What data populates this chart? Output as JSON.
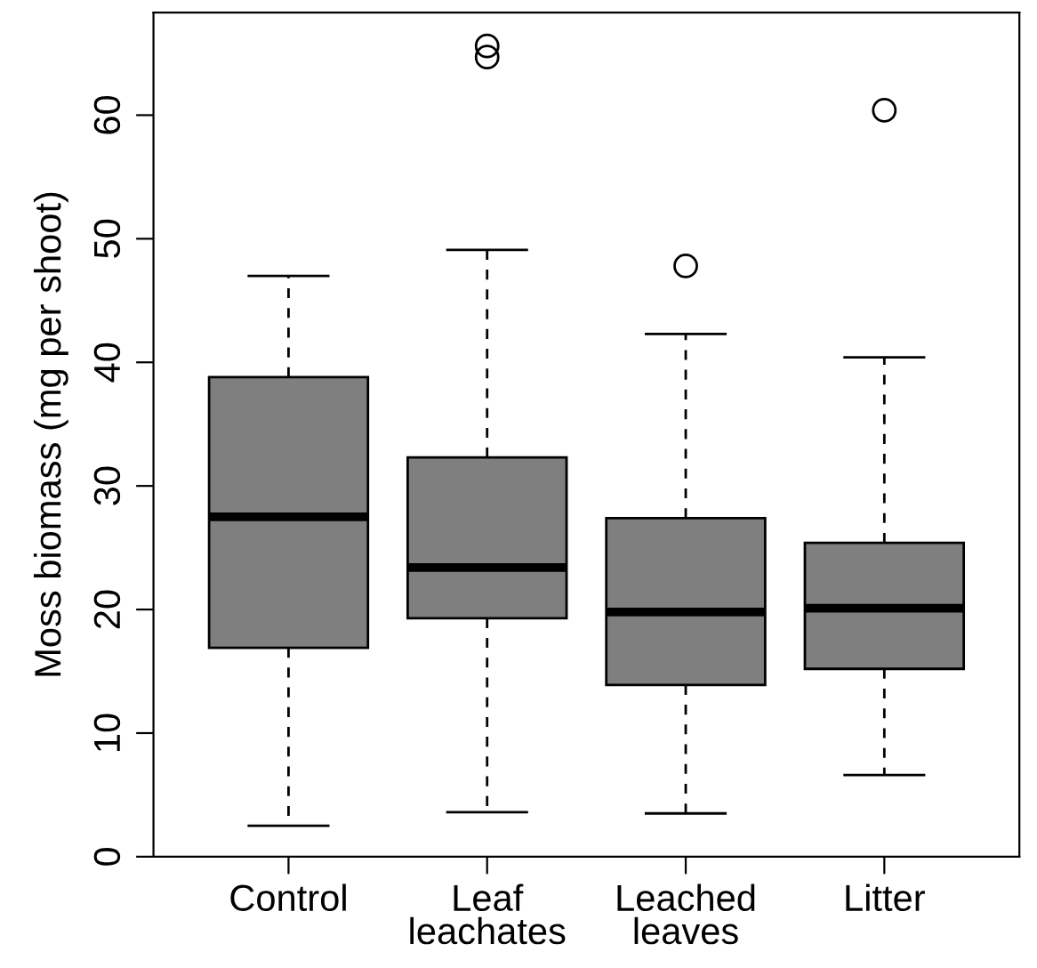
{
  "chart_data": {
    "type": "box",
    "ylabel": "Moss biomass (mg per shoot)",
    "categories": [
      "Control",
      "Leaf\nleachates",
      "Leached\nleaves",
      "Litter"
    ],
    "color": "#7f7f7f",
    "boxes": [
      {
        "low": 2.5,
        "q1": 16.9,
        "median": 27.5,
        "q3": 38.8,
        "high": 47.0
      },
      {
        "low": 3.6,
        "q1": 19.3,
        "median": 23.4,
        "q3": 32.3,
        "high": 49.1,
        "outliers": [
          64.7,
          65.6
        ]
      },
      {
        "low": 3.5,
        "q1": 13.9,
        "median": 19.8,
        "q3": 27.4,
        "high": 42.3,
        "outliers": [
          47.8
        ]
      },
      {
        "low": 6.6,
        "q1": 15.2,
        "median": 20.1,
        "q3": 25.4,
        "high": 40.4,
        "outliers": [
          60.4
        ]
      }
    ],
    "ylim": [
      0,
      68.3
    ],
    "yticks": [
      0,
      10,
      20,
      30,
      40,
      50,
      60
    ],
    "grid": false,
    "marker": "circle"
  }
}
